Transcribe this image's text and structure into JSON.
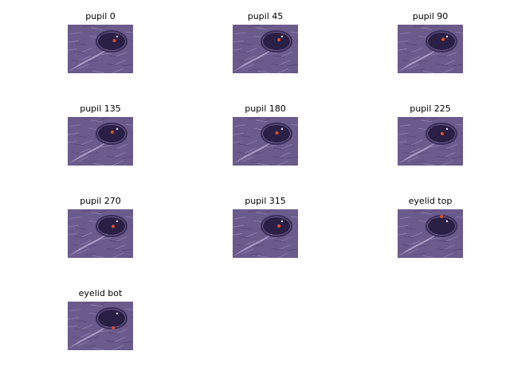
{
  "panels": [
    {
      "title": "pupil 0",
      "marker_angle_deg": 0
    },
    {
      "title": "pupil 45",
      "marker_angle_deg": 45
    },
    {
      "title": "pupil 90",
      "marker_angle_deg": 90
    },
    {
      "title": "pupil 135",
      "marker_angle_deg": 135
    },
    {
      "title": "pupil 180",
      "marker_angle_deg": 180
    },
    {
      "title": "pupil 225",
      "marker_angle_deg": 225
    },
    {
      "title": "pupil 270",
      "marker_angle_deg": 270
    },
    {
      "title": "pupil 315",
      "marker_angle_deg": 315
    },
    {
      "title": "eyelid top",
      "marker_angle_deg": null
    },
    {
      "title": "eyelid bot",
      "marker_angle_deg": null
    }
  ],
  "colors": {
    "image_tint": "#6b5a8c",
    "eye_dark": "#2a1f45",
    "marker": "#e0522a"
  }
}
